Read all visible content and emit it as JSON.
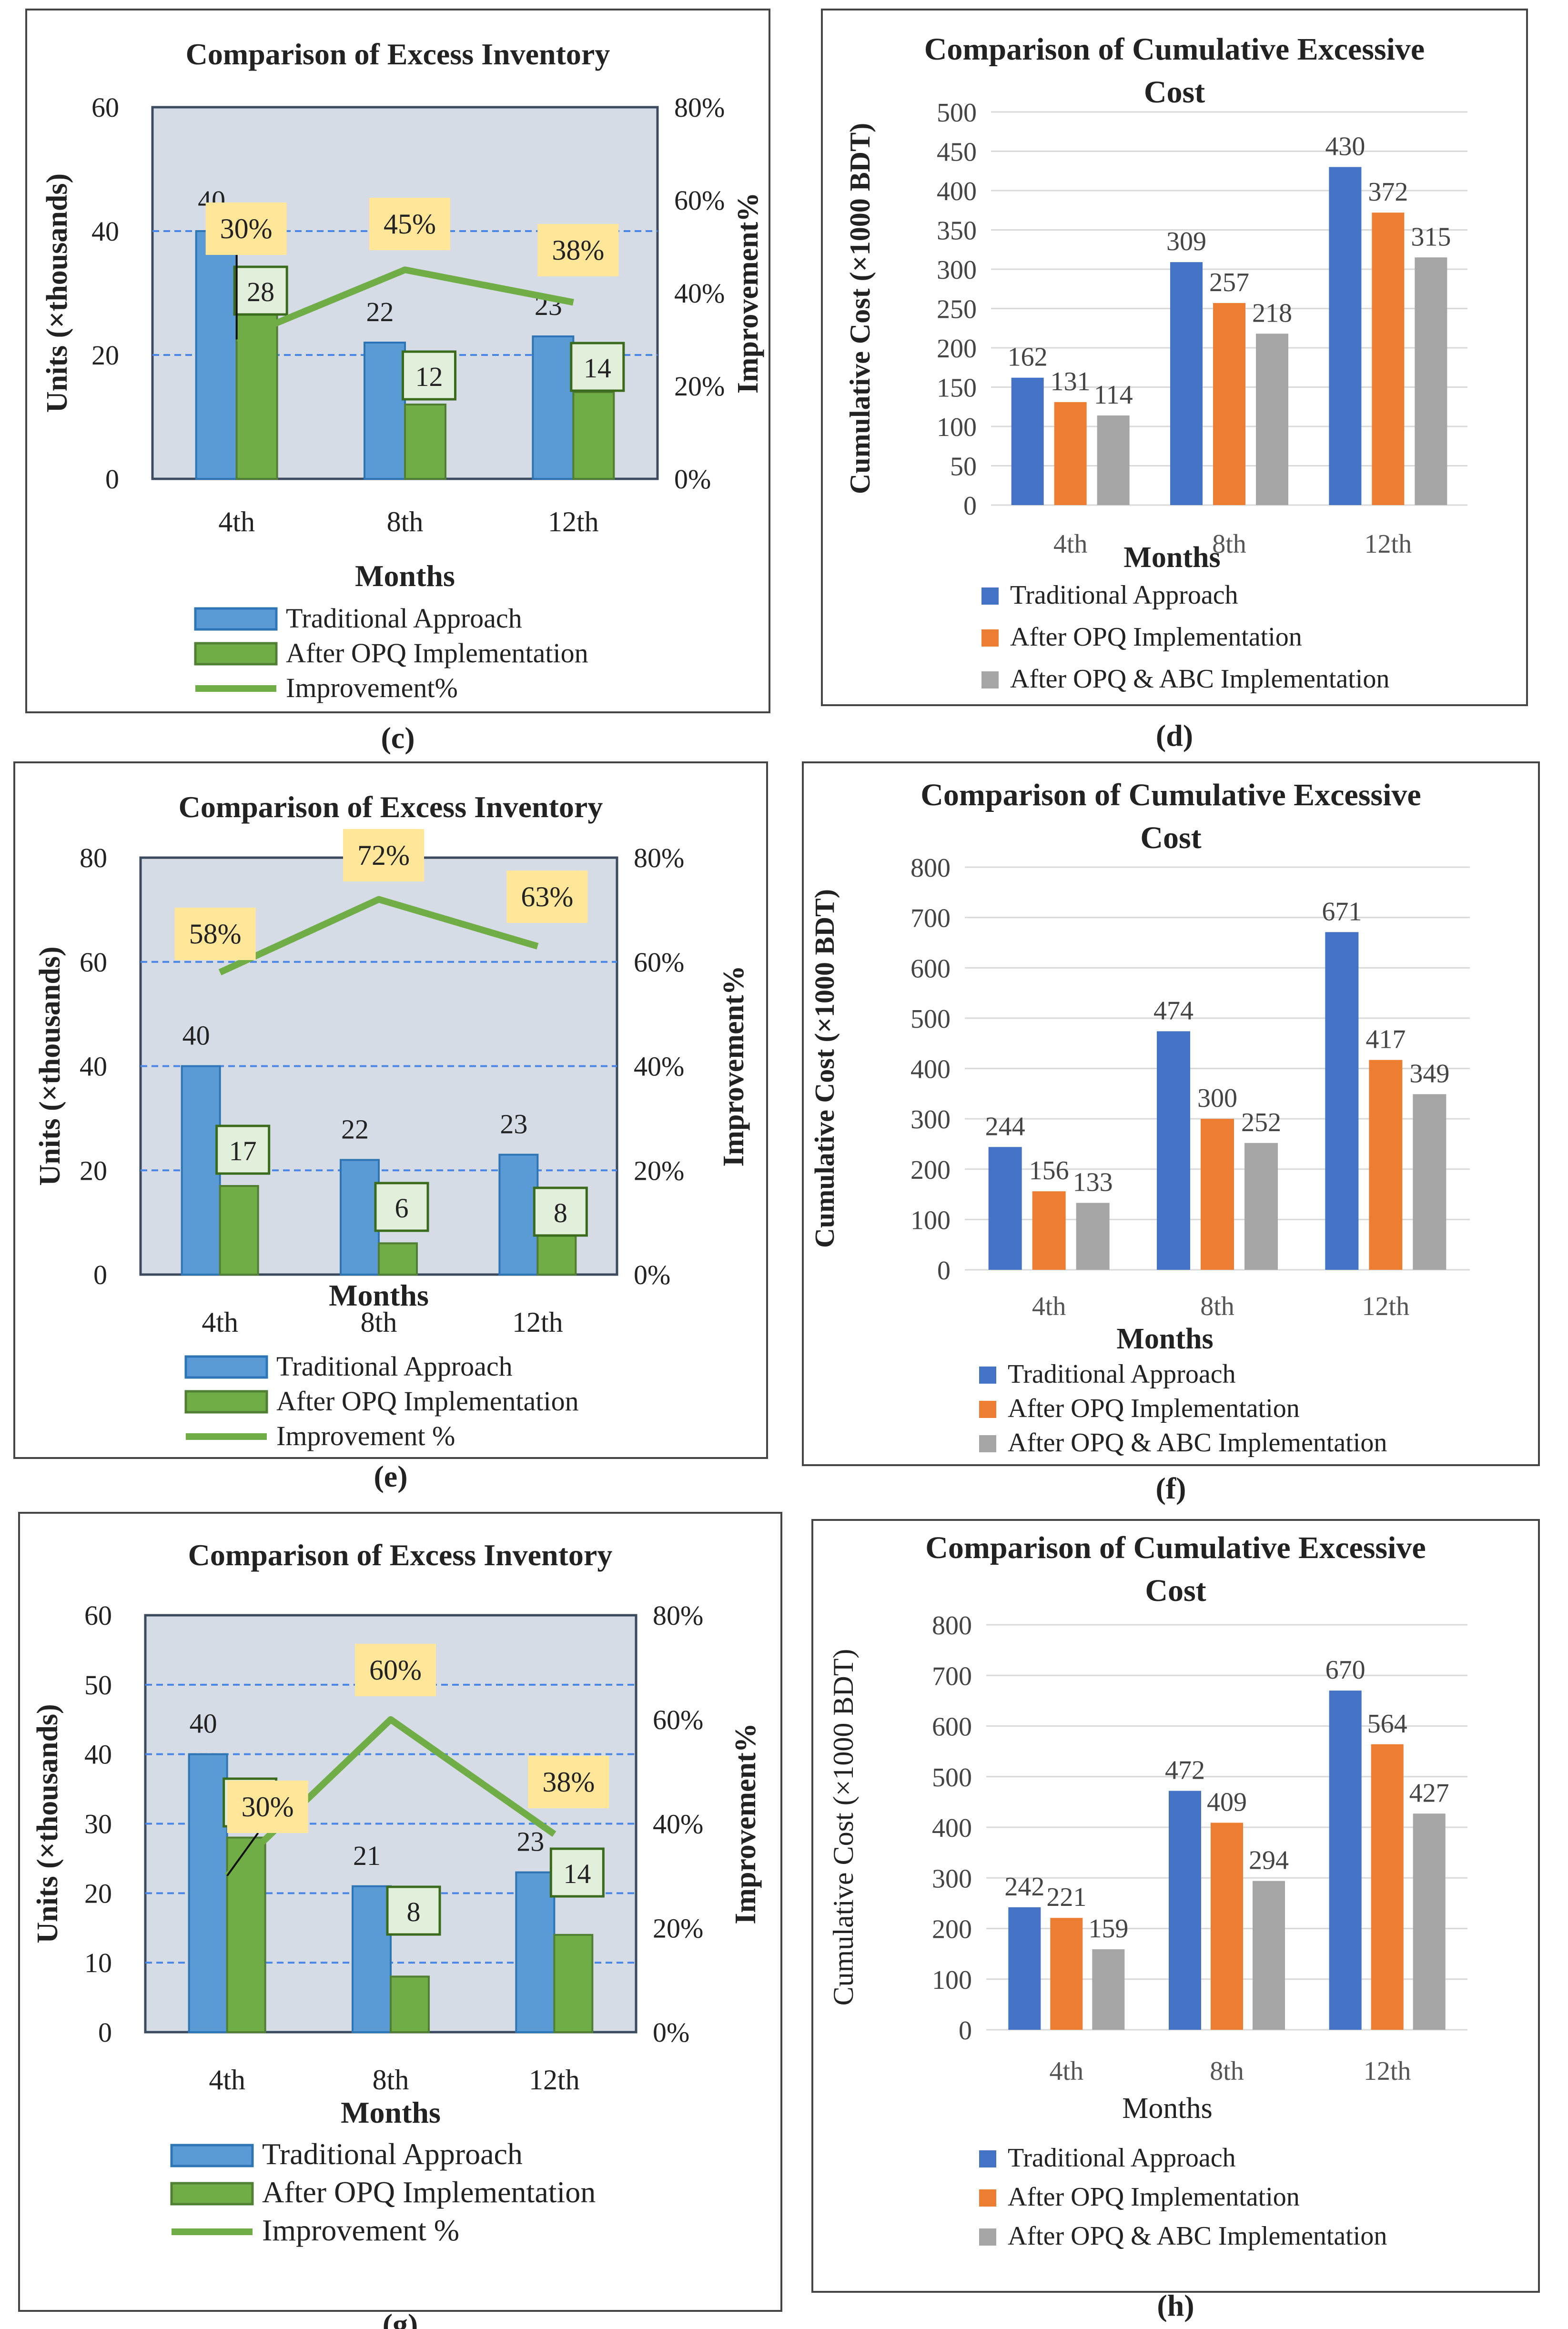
{
  "colors": {
    "blue": "#5b9bd5",
    "green": "#70ad47",
    "orange": "#ed7d31",
    "gray": "#a5a5a5",
    "royal_blue": "#4472c4",
    "plot_bg": "#d6dce5",
    "label_box": "#ffe699",
    "dark_green": "#3a6b1c"
  },
  "chart_data": [
    {
      "id": "c",
      "panel_label": "(c)",
      "type": "bar",
      "title": "Comparison of Excess Inventory",
      "xlabel": "Months",
      "ylabel": "Units (×thousands)",
      "y2label": "Improvement%",
      "categories": [
        "4th",
        "8th",
        "12th"
      ],
      "ylim": [
        0,
        60
      ],
      "y2lim": [
        0,
        0.8
      ],
      "yticks": [
        "0",
        "20",
        "40",
        "60"
      ],
      "y2ticks": [
        "0%",
        "20%",
        "40%",
        "60%",
        "80%"
      ],
      "series": [
        {
          "name": "Traditional Approach",
          "values": [
            40,
            22,
            23
          ],
          "labels": [
            "40",
            "22",
            "23"
          ]
        },
        {
          "name": "After OPQ Implementation",
          "values": [
            28,
            12,
            14
          ],
          "labels": [
            "28",
            "12",
            "14"
          ]
        }
      ],
      "line": {
        "name": "Improvement%",
        "values": [
          0.3,
          0.45,
          0.38
        ],
        "labels": [
          "30%",
          "45%",
          "38%"
        ]
      }
    },
    {
      "id": "d",
      "panel_label": "(d)",
      "type": "bar",
      "title_lines": [
        "Comparison of Cumulative Excessive",
        "Cost"
      ],
      "xlabel": "Months",
      "ylabel": "Cumulative Cost (×1000 BDT)",
      "categories": [
        "4th",
        "8th",
        "12th"
      ],
      "ylim": [
        0,
        500
      ],
      "yticks": [
        "0",
        "50",
        "100",
        "150",
        "200",
        "250",
        "300",
        "350",
        "400",
        "450",
        "500"
      ],
      "series": [
        {
          "name": "Traditional Approach",
          "values": [
            162,
            309,
            430
          ],
          "labels": [
            "162",
            "309",
            "430"
          ]
        },
        {
          "name": "After OPQ Implementation",
          "values": [
            131,
            257,
            372
          ],
          "labels": [
            "131",
            "257",
            "372"
          ]
        },
        {
          "name": "After OPQ & ABC Implementation",
          "values": [
            114,
            218,
            315
          ],
          "labels": [
            "114",
            "218",
            "315"
          ]
        }
      ]
    },
    {
      "id": "e",
      "panel_label": "(e)",
      "type": "bar",
      "title": "Comparison of Excess Inventory",
      "xlabel": "Months",
      "ylabel": "Units (×thousands)",
      "y2label": "Improvement%",
      "categories": [
        "4th",
        "8th",
        "12th"
      ],
      "ylim": [
        0,
        80
      ],
      "y2lim": [
        0,
        0.8
      ],
      "yticks": [
        "0",
        "20",
        "40",
        "60",
        "80"
      ],
      "y2ticks": [
        "0%",
        "20%",
        "40%",
        "60%",
        "80%"
      ],
      "series": [
        {
          "name": "Traditional Approach",
          "values": [
            40,
            22,
            23
          ],
          "labels": [
            "40",
            "22",
            "23"
          ]
        },
        {
          "name": "After OPQ Implementation",
          "values": [
            17,
            6,
            8
          ],
          "labels": [
            "17",
            "6",
            "8"
          ]
        }
      ],
      "line": {
        "name": "Improvement %",
        "values": [
          0.58,
          0.72,
          0.63
        ],
        "labels": [
          "58%",
          "72%",
          "63%"
        ]
      }
    },
    {
      "id": "f",
      "panel_label": "(f)",
      "type": "bar",
      "title_lines": [
        "Comparison of Cumulative Excessive",
        "Cost"
      ],
      "xlabel": "Months",
      "ylabel": "Cumulative Cost (×1000 BDT)",
      "categories": [
        "4th",
        "8th",
        "12th"
      ],
      "ylim": [
        0,
        800
      ],
      "yticks": [
        "0",
        "100",
        "200",
        "300",
        "400",
        "500",
        "600",
        "700",
        "800"
      ],
      "series": [
        {
          "name": "Traditional Approach",
          "values": [
            244,
            474,
            671
          ],
          "labels": [
            "244",
            "474",
            "671"
          ]
        },
        {
          "name": "After OPQ Implementation",
          "values": [
            156,
            300,
            417
          ],
          "labels": [
            "156",
            "300",
            "417"
          ]
        },
        {
          "name": "After OPQ & ABC Implementation",
          "values": [
            133,
            252,
            349
          ],
          "labels": [
            "133",
            "252",
            "349"
          ]
        }
      ]
    },
    {
      "id": "g",
      "panel_label": "(g)",
      "type": "bar",
      "title": "Comparison of Excess Inventory",
      "xlabel": "Months",
      "ylabel": "Units (×thousands)",
      "y2label": "Improvement%",
      "categories": [
        "4th",
        "8th",
        "12th"
      ],
      "ylim": [
        0,
        60
      ],
      "y2lim": [
        0,
        0.8
      ],
      "yticks": [
        "0",
        "10",
        "20",
        "30",
        "40",
        "50",
        "60"
      ],
      "y2ticks": [
        "0%",
        "20%",
        "40%",
        "60%",
        "80%"
      ],
      "series": [
        {
          "name": "Traditional Approach",
          "values": [
            40,
            21,
            23
          ],
          "labels": [
            "40",
            "21",
            "23"
          ]
        },
        {
          "name": "After OPQ Implementation",
          "values": [
            28,
            8,
            14
          ],
          "labels": [
            "28",
            "8",
            "14"
          ]
        }
      ],
      "line": {
        "name": "Improvement %",
        "values": [
          0.3,
          0.6,
          0.38
        ],
        "labels": [
          "30%",
          "60%",
          "38%"
        ]
      }
    },
    {
      "id": "h",
      "panel_label": "(h)",
      "type": "bar",
      "title_lines": [
        "Comparison of Cumulative Excessive",
        "Cost"
      ],
      "xlabel": "Months",
      "ylabel": "Cumulative Cost (×1000 BDT)",
      "categories": [
        "4th",
        "8th",
        "12th"
      ],
      "ylim": [
        0,
        800
      ],
      "yticks": [
        "0",
        "100",
        "200",
        "300",
        "400",
        "500",
        "600",
        "700",
        "800"
      ],
      "series": [
        {
          "name": "Traditional Approach",
          "values": [
            242,
            472,
            670
          ],
          "labels": [
            "242",
            "472",
            "670"
          ]
        },
        {
          "name": "After OPQ Implementation",
          "values": [
            221,
            409,
            564
          ],
          "labels": [
            "221",
            "409",
            "564"
          ]
        },
        {
          "name": "After OPQ & ABC Implementation",
          "values": [
            159,
            294,
            427
          ],
          "labels": [
            "159",
            "294",
            "427"
          ]
        }
      ]
    }
  ]
}
